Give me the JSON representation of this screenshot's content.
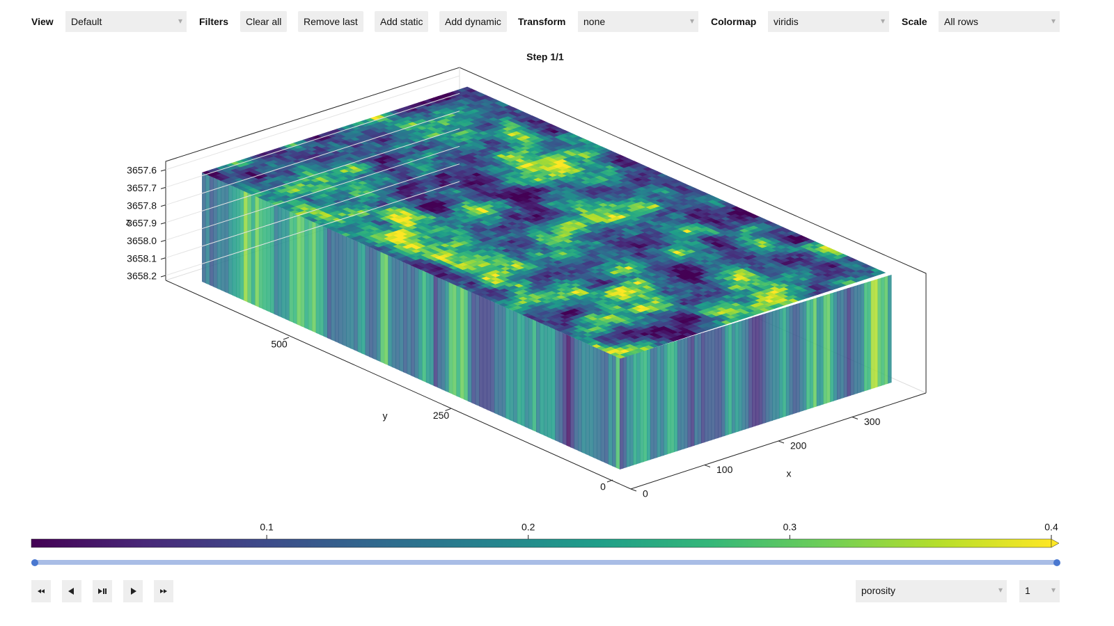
{
  "toolbar": {
    "view_label": "View",
    "view_value": "Default",
    "filters_label": "Filters",
    "buttons": [
      "Clear all",
      "Remove last",
      "Add static",
      "Add dynamic"
    ],
    "transform_label": "Transform",
    "transform_value": "none",
    "colormap_label": "Colormap",
    "colormap_value": "viridis",
    "scale_label": "Scale",
    "scale_value": "All rows"
  },
  "chart_data": {
    "type": "volume3d",
    "title": "Step 1/1",
    "xlabel": "x",
    "ylabel": "y",
    "zlabel": "z",
    "xticks": [
      0,
      100,
      200,
      300
    ],
    "yticks": [
      0,
      250,
      500
    ],
    "zticks": [
      3657.6,
      3657.7,
      3657.8,
      3657.9,
      {
        "value": 3658,
        "label": "3658.0"
      },
      3658.1,
      3658.2
    ],
    "colormap": "viridis",
    "colorbar": {
      "lim": [
        0.01,
        0.4
      ],
      "ticks": [
        0.1,
        0.2,
        0.3,
        0.4
      ]
    }
  },
  "controls": {
    "variable": "porosity",
    "step": "1"
  }
}
